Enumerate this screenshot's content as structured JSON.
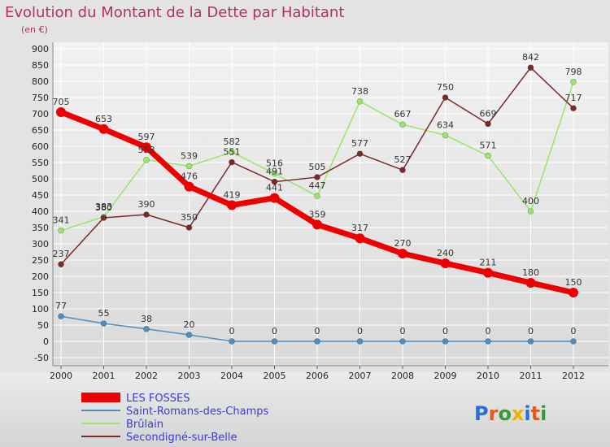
{
  "chart_data": {
    "type": "line",
    "title": "Evolution du Montant de la Dette par Habitant",
    "subtitle": "(en €)",
    "x": [
      "2000",
      "2001",
      "2002",
      "2003",
      "2004",
      "2005",
      "2006",
      "2007",
      "2008",
      "2009",
      "2010",
      "2011",
      "2012"
    ],
    "ylim": [
      -50,
      900
    ],
    "yticks": [
      -50,
      0,
      50,
      100,
      150,
      200,
      250,
      300,
      350,
      400,
      450,
      500,
      550,
      600,
      650,
      700,
      750,
      800,
      850,
      900
    ],
    "grid": true,
    "legend_position": "bottom-left",
    "series": [
      {
        "name": "LES FOSSES",
        "color": "#ee0000",
        "values": [
          705,
          653,
          597,
          476,
          419,
          441,
          359,
          317,
          270,
          240,
          211,
          180,
          150
        ]
      },
      {
        "name": "Saint-Romans-des-Champs",
        "color": "#4f8fbf",
        "values": [
          77,
          55,
          38,
          20,
          0,
          0,
          0,
          0,
          0,
          0,
          0,
          0,
          0
        ]
      },
      {
        "name": "Brûlain",
        "color": "#99e66b",
        "values": [
          341,
          383,
          558,
          539,
          582,
          516,
          447,
          738,
          667,
          634,
          571,
          400,
          798
        ]
      },
      {
        "name": "Secondigné-sur-Belle",
        "color": "#7a2a2a",
        "values": [
          237,
          380,
          390,
          350,
          551,
          491,
          505,
          577,
          527,
          750,
          669,
          842,
          717
        ]
      }
    ]
  },
  "logo": {
    "text": "Proxiti"
  }
}
